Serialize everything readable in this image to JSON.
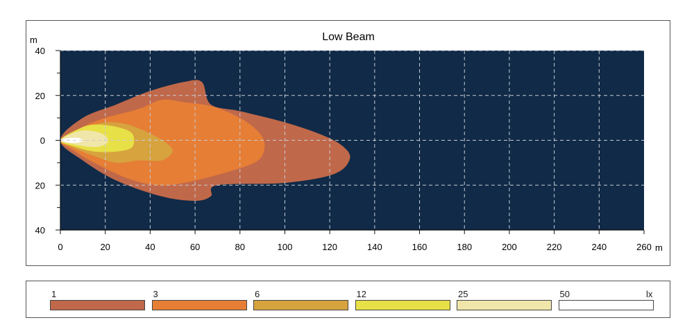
{
  "chart_data": {
    "type": "contour",
    "title": "Low Beam",
    "x_unit_label": "m",
    "y_unit_label": "m",
    "xlim": [
      0,
      260
    ],
    "ylim": [
      -40,
      40
    ],
    "x_ticks": [
      0,
      20,
      40,
      60,
      80,
      100,
      120,
      140,
      160,
      180,
      200,
      220,
      240,
      260
    ],
    "y_ticks": [
      40,
      20,
      0,
      -20,
      -40
    ],
    "y_tick_labels": [
      "40",
      "20",
      "0",
      "20",
      "40"
    ],
    "grid": true,
    "background_color": "#102a48",
    "grid_color": "#c8ccd2",
    "levels": [
      {
        "label": "1",
        "color": "#c0684a",
        "points": [
          [
            0,
            0
          ],
          [
            10,
            10
          ],
          [
            25,
            16
          ],
          [
            40,
            22
          ],
          [
            55,
            26
          ],
          [
            63,
            26
          ],
          [
            67,
            16
          ],
          [
            80,
            13
          ],
          [
            100,
            8
          ],
          [
            115,
            3
          ],
          [
            125,
            -2
          ],
          [
            129,
            -8
          ],
          [
            122,
            -15
          ],
          [
            100,
            -19
          ],
          [
            70,
            -20
          ],
          [
            67,
            -25
          ],
          [
            60,
            -27
          ],
          [
            45,
            -25
          ],
          [
            25,
            -18
          ],
          [
            10,
            -9
          ]
        ]
      },
      {
        "label": "3",
        "color": "#e67e36",
        "points": [
          [
            0,
            0
          ],
          [
            10,
            6
          ],
          [
            20,
            10
          ],
          [
            35,
            14
          ],
          [
            45,
            18
          ],
          [
            55,
            17
          ],
          [
            68,
            15
          ],
          [
            80,
            10
          ],
          [
            88,
            4
          ],
          [
            91,
            -2
          ],
          [
            88,
            -9
          ],
          [
            75,
            -14
          ],
          [
            55,
            -19
          ],
          [
            43,
            -20
          ],
          [
            30,
            -17
          ],
          [
            15,
            -10
          ],
          [
            5,
            -4
          ]
        ]
      },
      {
        "label": "6",
        "color": "#d6a33e",
        "points": [
          [
            0,
            0
          ],
          [
            10,
            5
          ],
          [
            20,
            8
          ],
          [
            30,
            7
          ],
          [
            40,
            3
          ],
          [
            47,
            -1
          ],
          [
            50,
            -5
          ],
          [
            45,
            -9
          ],
          [
            35,
            -9
          ],
          [
            25,
            -10
          ],
          [
            15,
            -7
          ],
          [
            5,
            -3
          ]
        ]
      },
      {
        "label": "12",
        "color": "#e8e047",
        "points": [
          [
            0,
            0
          ],
          [
            8,
            5
          ],
          [
            15,
            7
          ],
          [
            25,
            6
          ],
          [
            32,
            3
          ],
          [
            32,
            -3
          ],
          [
            25,
            -5
          ],
          [
            15,
            -5
          ],
          [
            7,
            -3
          ]
        ]
      },
      {
        "label": "25",
        "color": "#f1e6aa",
        "points": [
          [
            0,
            0
          ],
          [
            8,
            4
          ],
          [
            15,
            4
          ],
          [
            20,
            2
          ],
          [
            21,
            -1
          ],
          [
            16,
            -3
          ],
          [
            7,
            -2
          ]
        ]
      },
      {
        "label": "50",
        "color": "#ffffff",
        "points": [
          [
            0,
            0
          ],
          [
            4,
            1
          ],
          [
            8,
            1
          ],
          [
            10,
            0
          ],
          [
            8,
            -1
          ],
          [
            4,
            -1
          ]
        ]
      }
    ],
    "legend_unit": "lx"
  }
}
